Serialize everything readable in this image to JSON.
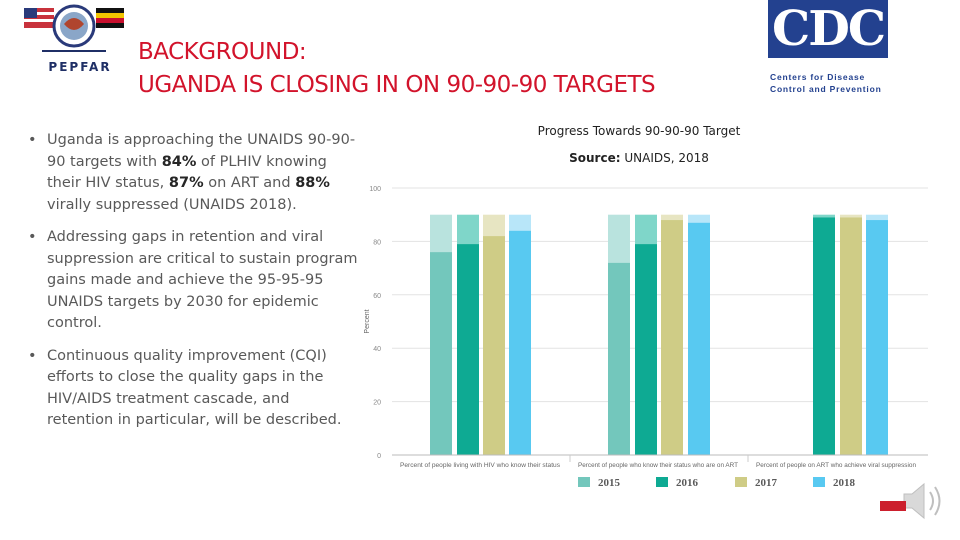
{
  "header": {
    "logo_text": "PEPFAR",
    "title_lines": [
      "BACKGROUND:",
      "UGANDA IS CLOSING IN ON 90-90-90 TARGETS"
    ]
  },
  "cdc": {
    "logo_text": "CDC",
    "line1": "Centers for Disease",
    "line2": "Control and Prevention",
    "color": "#23418f"
  },
  "bullets": [
    {
      "bullet": "•",
      "parts": [
        {
          "text": "Uganda is approaching the UNAIDS 90-90-90 targets with ",
          "bold": false
        },
        {
          "text": "84%",
          "bold": true
        },
        {
          "text": " of PLHIV knowing their HIV status, ",
          "bold": false
        },
        {
          "text": "87%",
          "bold": true
        },
        {
          "text": " on ART and ",
          "bold": false
        },
        {
          "text": "88%",
          "bold": true
        },
        {
          "text": " virally suppressed (UNAIDS 2018).",
          "bold": false
        }
      ]
    },
    {
      "bullet": "•",
      "parts": [
        {
          "text": "Addressing gaps in retention and viral suppression are critical to sustain program gains made and achieve the 95-95-95 UNAIDS targets by 2030 for epidemic control.",
          "bold": false
        }
      ]
    },
    {
      "bullet": "•",
      "parts": [
        {
          "text": "Continuous quality improvement (CQI) efforts to close the quality gaps in the HIV/AIDS treatment cascade, and retention in particular, will be described.",
          "bold": false
        }
      ]
    }
  ],
  "chart_header": {
    "title": "Progress Towards 90-90-90 Target",
    "source_label": "Source:",
    "source_value": "UNAIDS, 2018"
  },
  "chart_data": {
    "type": "bar",
    "title": "Progress Towards 90-90-90 Target",
    "subtitle": "Source: UNAIDS, 2018",
    "ylabel": "Percent",
    "xlabel": "",
    "ylim": [
      0,
      100
    ],
    "yticks": [
      0,
      20,
      40,
      60,
      80,
      100
    ],
    "grid": true,
    "target": 90,
    "categories": [
      "Percent of people living with HIV who know their status",
      "Percent of people who know their status who are on ART",
      "Percent of people on ART who achieve viral suppression"
    ],
    "series": [
      {
        "name": "2015",
        "color": "#73c7bc",
        "light": "#b9e3de",
        "values": [
          76,
          72,
          null
        ]
      },
      {
        "name": "2016",
        "color": "#0eaa93",
        "light": "#7fd6c9",
        "values": [
          79,
          79,
          89
        ]
      },
      {
        "name": "2017",
        "color": "#cfcc86",
        "light": "#e7e5c2",
        "values": [
          82,
          88,
          89
        ]
      },
      {
        "name": "2018",
        "color": "#58c9f1",
        "light": "#b8e6f9",
        "values": [
          84,
          87,
          88
        ]
      }
    ],
    "legend_position": "bottom"
  }
}
